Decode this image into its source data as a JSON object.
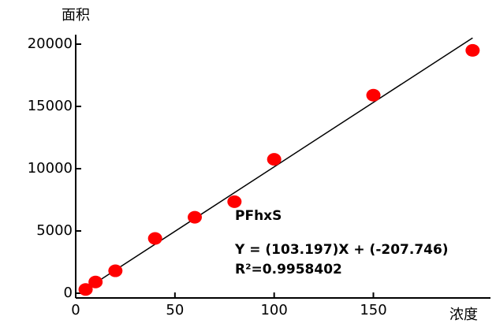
{
  "chart_data": {
    "type": "scatter",
    "y_label": "面积",
    "x_label": "浓度",
    "compound": "PFhxS",
    "equation": "Y = (103.197)X + (-207.746)",
    "r_squared": "R²=0.9958402",
    "x": [
      5,
      10,
      20,
      40,
      60,
      80,
      100,
      150,
      200
    ],
    "values": [
      300,
      900,
      1800,
      4400,
      6100,
      7350,
      10750,
      15900,
      19500
    ],
    "color": "#ff0000",
    "fit": {
      "x": [
        2,
        200
      ],
      "values": [
        0,
        20500
      ],
      "color": "#000000"
    },
    "xlim": [
      0,
      209
    ],
    "ylim": [
      -380,
      20760
    ],
    "xticks": [
      0,
      50,
      100,
      150
    ],
    "yticks": [
      0,
      5000,
      10000,
      15000,
      20000
    ]
  }
}
